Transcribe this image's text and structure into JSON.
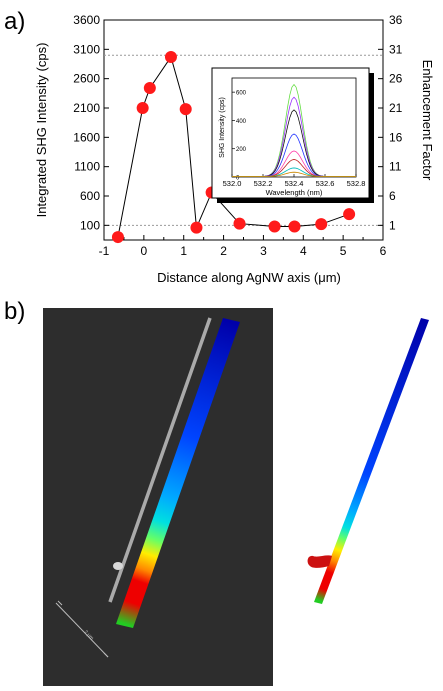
{
  "panel_a_label": "a)",
  "panel_b_label": "b)",
  "chart_data": [
    {
      "type": "scatter",
      "title": "",
      "xlabel": "Distance along AgNW axis (μm)",
      "ylabel": "Integrated SHG Intensity (cps)",
      "y2label": "Enhancement Factor",
      "xlim": [
        -1,
        6
      ],
      "ylim": [
        -150,
        3600
      ],
      "xticks": [
        "-1",
        "0",
        "1",
        "2",
        "3",
        "4",
        "5",
        "6"
      ],
      "yticks": [
        "100",
        "600",
        "1100",
        "1600",
        "2100",
        "2600",
        "3100",
        "3600"
      ],
      "y2ticks": [
        "1",
        "6",
        "11",
        "16",
        "21",
        "26",
        "31",
        "36"
      ],
      "reference_lines_y": [
        100,
        3000
      ],
      "grid": false,
      "marker_color": "#ff1a1a",
      "x": [
        -0.65,
        -0.03,
        0.15,
        0.68,
        1.05,
        1.32,
        1.7,
        2.4,
        3.28,
        3.78,
        4.45,
        5.15
      ],
      "y": [
        -100,
        2100,
        2440,
        2970,
        2080,
        60,
        660,
        130,
        80,
        80,
        120,
        290
      ]
    },
    {
      "type": "line",
      "title": "",
      "xlabel": "Wavelength (nm)",
      "ylabel": "SHG Intensity (cps)",
      "xlim": [
        532.0,
        532.8
      ],
      "ylim": [
        0,
        700
      ],
      "xticks": [
        "532.0",
        "532.2",
        "532.4",
        "532.6",
        "532.8"
      ],
      "yticks": [
        "0",
        "200",
        "400",
        "600"
      ],
      "peak_x": 532.4,
      "series": [
        {
          "color": "#66dd44",
          "peak": 650
        },
        {
          "color": "#9b30ff",
          "peak": 560
        },
        {
          "color": "#111111",
          "peak": 470
        },
        {
          "color": "#2233ff",
          "peak": 300
        },
        {
          "color": "#ff44aa",
          "peak": 180
        },
        {
          "color": "#bb2222",
          "peak": 120
        },
        {
          "color": "#00bbbb",
          "peak": 60
        },
        {
          "color": "#cc8800",
          "peak": 30
        }
      ]
    }
  ],
  "figure_b": {
    "background": "#2d2d2d",
    "scale_text": "2 μm",
    "heatmap_colors": [
      "#0000aa",
      "#0044ff",
      "#00aaff",
      "#00e0e0",
      "#66ff66",
      "#ffee00",
      "#ff8800",
      "#ee0000",
      "#ee0000",
      "#22cc22"
    ],
    "nanowire_color": "#aaaaaa",
    "particle_color": "#cc1111"
  }
}
